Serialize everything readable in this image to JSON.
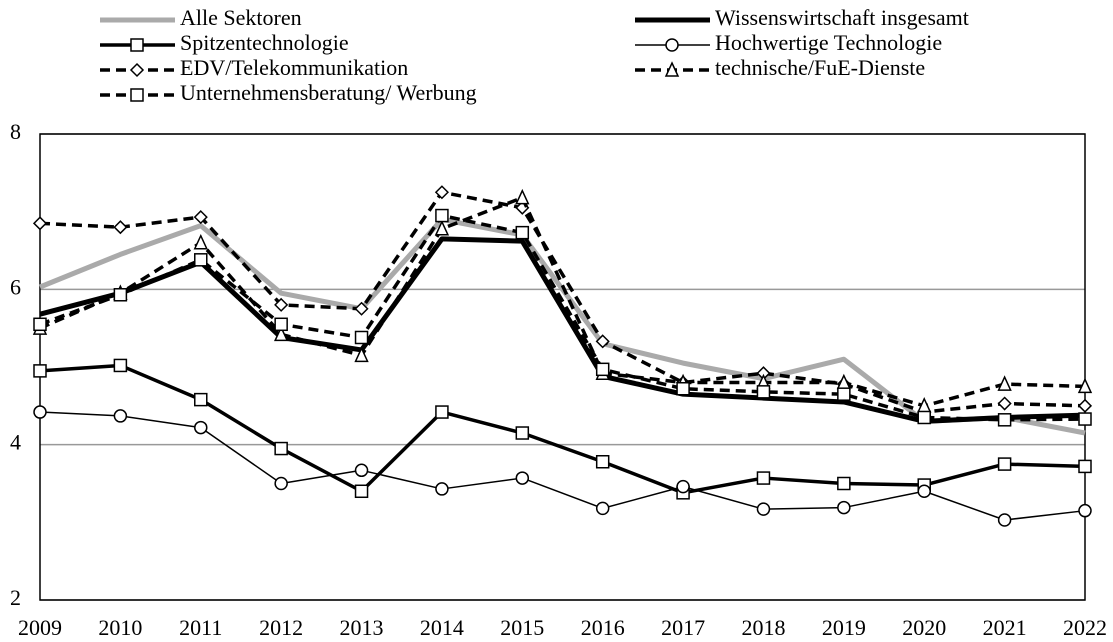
{
  "chart_data": {
    "type": "line",
    "categories": [
      "2009",
      "2010",
      "2011",
      "2012",
      "2013",
      "2014",
      "2015",
      "2016",
      "2017",
      "2018",
      "2019",
      "2020",
      "2021",
      "2022"
    ],
    "ylim": [
      2,
      8
    ],
    "yticks": [
      2,
      4,
      6,
      8
    ],
    "grid": true,
    "series": [
      {
        "name": "Alle Sektoren",
        "color": "#aaaaaa",
        "width": 5,
        "dash": "none",
        "marker": "none",
        "values": [
          6.03,
          6.45,
          6.82,
          5.95,
          5.75,
          6.9,
          6.7,
          5.3,
          5.05,
          4.85,
          5.1,
          4.3,
          4.35,
          4.15
        ]
      },
      {
        "name": "Wissenswirtschaft insgesamt",
        "color": "#000000",
        "width": 5,
        "dash": "none",
        "marker": "none",
        "values": [
          5.68,
          5.95,
          6.35,
          5.38,
          5.22,
          6.65,
          6.62,
          4.88,
          4.65,
          4.6,
          4.55,
          4.3,
          4.35,
          4.38
        ]
      },
      {
        "name": "Spitzentechnologie",
        "color": "#000000",
        "width": 3.5,
        "dash": "none",
        "marker": "square",
        "values": [
          4.95,
          5.02,
          4.58,
          3.95,
          3.4,
          4.42,
          4.15,
          3.78,
          3.38,
          3.57,
          3.5,
          3.48,
          3.75,
          3.72
        ]
      },
      {
        "name": "Hochwertige Technologie",
        "color": "#000000",
        "width": 1.5,
        "dash": "none",
        "marker": "circle",
        "values": [
          4.42,
          4.37,
          4.22,
          3.5,
          3.67,
          3.43,
          3.57,
          3.18,
          3.46,
          3.17,
          3.19,
          3.4,
          3.03,
          3.15
        ]
      },
      {
        "name": "EDV/Telekommunikation",
        "color": "#000000",
        "width": 3.5,
        "dash": "10 6",
        "marker": "diamond",
        "values": [
          6.85,
          6.8,
          6.93,
          5.8,
          5.75,
          7.25,
          7.05,
          5.33,
          4.8,
          4.92,
          4.78,
          4.42,
          4.53,
          4.5
        ]
      },
      {
        "name": "technische/FuE-Dienste",
        "color": "#000000",
        "width": 3.5,
        "dash": "10 6",
        "marker": "triangle",
        "values": [
          5.5,
          5.95,
          6.6,
          5.42,
          5.15,
          6.78,
          7.18,
          4.92,
          4.8,
          4.8,
          4.8,
          4.5,
          4.78,
          4.75
        ]
      },
      {
        "name": "Unternehmensberatung/ Werbung",
        "color": "#000000",
        "width": 3.5,
        "dash": "10 6",
        "marker": "square",
        "values": [
          5.55,
          5.93,
          6.38,
          5.55,
          5.38,
          6.95,
          6.73,
          4.97,
          4.72,
          4.68,
          4.65,
          4.35,
          4.32,
          4.33
        ]
      }
    ]
  }
}
